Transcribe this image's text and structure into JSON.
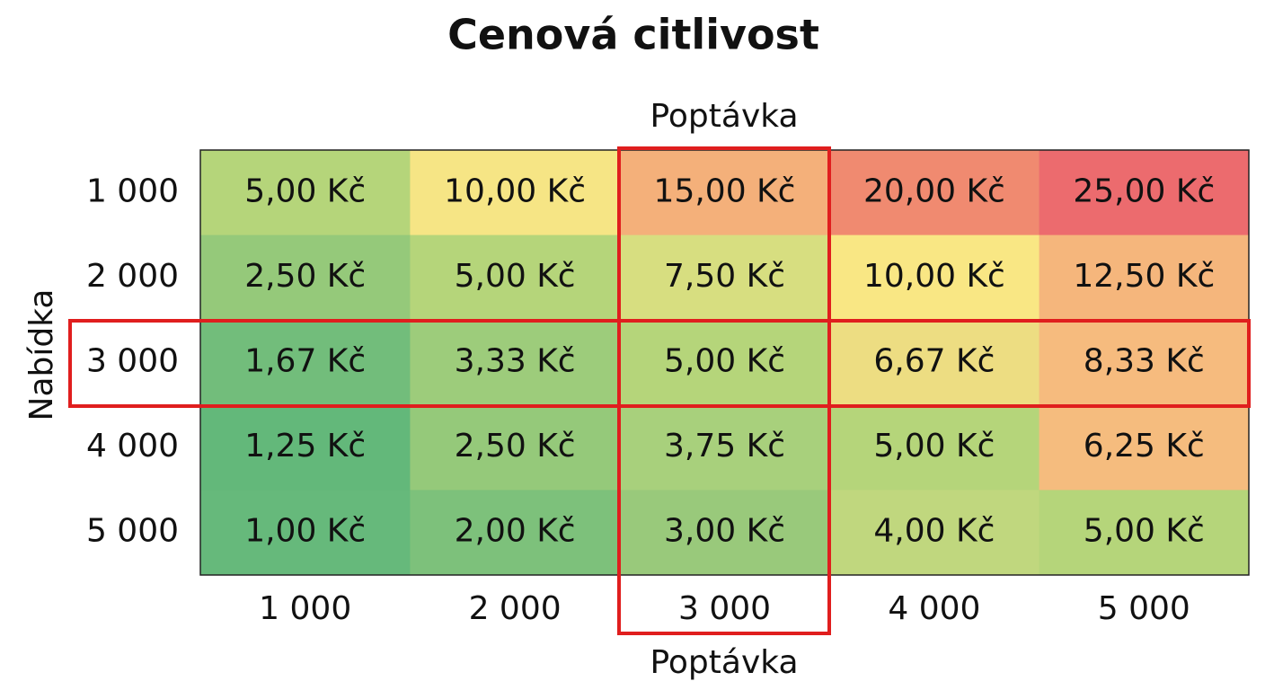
{
  "header": {
    "title": "Cenová citlivost"
  },
  "column_axis": {
    "title_top": "Poptávka",
    "title_bottom": "Poptávka",
    "labels": [
      "1 000",
      "2 000",
      "3 000",
      "4 000",
      "5 000"
    ]
  },
  "row_axis": {
    "title": "Nabídka",
    "labels": [
      "1 000",
      "2 000",
      "3 000",
      "4 000",
      "5 000"
    ]
  },
  "table": {
    "rows": [
      [
        "5,00 Kč",
        "10,00 Kč",
        "15,00 Kč",
        "20,00 Kč",
        "25,00 Kč"
      ],
      [
        "2,50 Kč",
        "5,00 Kč",
        "7,50 Kč",
        "10,00 Kč",
        "12,50 Kč"
      ],
      [
        "1,67 Kč",
        "3,33 Kč",
        "5,00 Kč",
        "6,67 Kč",
        "8,33 Kč"
      ],
      [
        "1,25 Kč",
        "2,50 Kč",
        "3,75 Kč",
        "5,00 Kč",
        "6,25 Kč"
      ],
      [
        "1,00 Kč",
        "2,00 Kč",
        "3,00 Kč",
        "4,00 Kč",
        "5,00 Kč"
      ]
    ],
    "colors": [
      [
        "#b5d57a",
        "#f6e585",
        "#f4b07a",
        "#f08a70",
        "#ec6b6e"
      ],
      [
        "#95c97a",
        "#b5d57a",
        "#d7de80",
        "#f9e784",
        "#f5b67c"
      ],
      [
        "#72bd7b",
        "#9dcc7b",
        "#b5d57a",
        "#eddd82",
        "#f6bb7e"
      ],
      [
        "#63b87a",
        "#95c97a",
        "#a8d07c",
        "#b5d57a",
        "#f5bc7e"
      ],
      [
        "#66b97b",
        "#7dc17b",
        "#99c97b",
        "#c0d77e",
        "#b5d57a"
      ]
    ]
  }
}
